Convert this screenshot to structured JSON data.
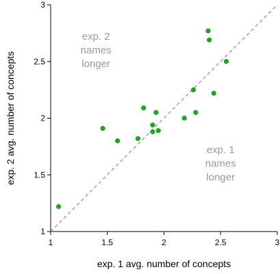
{
  "chart_data": {
    "type": "scatter",
    "title": "",
    "xlabel": "exp. 1 avg. number of concepts",
    "ylabel": "exp. 2 avg. number of concepts",
    "xlim": [
      1,
      3
    ],
    "ylim": [
      1,
      3
    ],
    "xticks": [
      "1",
      "1.5",
      "2",
      "2.5",
      "3"
    ],
    "yticks": [
      "1",
      "1.5",
      "2",
      "2.5",
      "3"
    ],
    "grid": false,
    "point_color": "#1aa71a",
    "reference_line": {
      "type": "y=x",
      "style": "dashed",
      "color": "#9a9a9a"
    },
    "annotations": [
      {
        "lines": [
          "exp. 2",
          "names",
          "longer"
        ],
        "x": 1.4,
        "y": 2.6
      },
      {
        "lines": [
          "exp. 1",
          "names",
          "longer"
        ],
        "x": 2.5,
        "y": 1.6
      }
    ],
    "points": [
      {
        "x": 1.07,
        "y": 1.22
      },
      {
        "x": 1.46,
        "y": 1.91
      },
      {
        "x": 1.59,
        "y": 1.8
      },
      {
        "x": 1.77,
        "y": 1.82
      },
      {
        "x": 1.82,
        "y": 2.09
      },
      {
        "x": 1.9,
        "y": 1.94
      },
      {
        "x": 1.9,
        "y": 1.88
      },
      {
        "x": 1.93,
        "y": 2.05
      },
      {
        "x": 1.95,
        "y": 1.89
      },
      {
        "x": 2.18,
        "y": 2.0
      },
      {
        "x": 2.26,
        "y": 2.25
      },
      {
        "x": 2.28,
        "y": 2.05
      },
      {
        "x": 2.39,
        "y": 2.77
      },
      {
        "x": 2.4,
        "y": 2.69
      },
      {
        "x": 2.44,
        "y": 2.22
      },
      {
        "x": 2.55,
        "y": 2.5
      }
    ]
  }
}
